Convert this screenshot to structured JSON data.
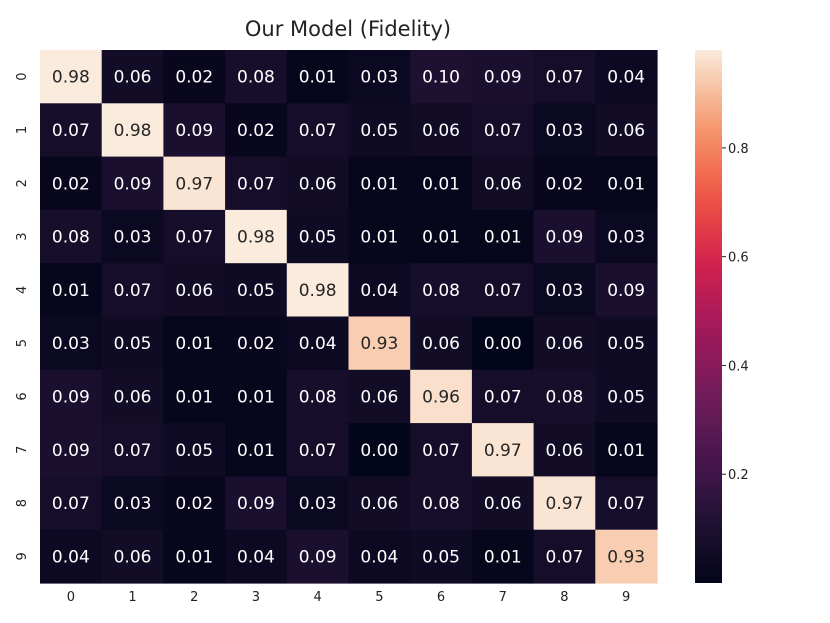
{
  "chart_data": {
    "type": "heatmap",
    "title": "Our Model (Fidelity)",
    "xlabel": "",
    "ylabel": "",
    "x_ticks": [
      "0",
      "1",
      "2",
      "3",
      "4",
      "5",
      "6",
      "7",
      "8",
      "9"
    ],
    "y_ticks": [
      "0",
      "1",
      "2",
      "3",
      "4",
      "5",
      "6",
      "7",
      "8",
      "9"
    ],
    "values": [
      [
        0.98,
        0.06,
        0.02,
        0.08,
        0.01,
        0.03,
        0.1,
        0.09,
        0.07,
        0.04
      ],
      [
        0.07,
        0.98,
        0.09,
        0.02,
        0.07,
        0.05,
        0.06,
        0.07,
        0.03,
        0.06
      ],
      [
        0.02,
        0.09,
        0.97,
        0.07,
        0.06,
        0.01,
        0.01,
        0.06,
        0.02,
        0.01
      ],
      [
        0.08,
        0.03,
        0.07,
        0.98,
        0.05,
        0.01,
        0.01,
        0.01,
        0.09,
        0.03
      ],
      [
        0.01,
        0.07,
        0.06,
        0.05,
        0.98,
        0.04,
        0.08,
        0.07,
        0.03,
        0.09
      ],
      [
        0.03,
        0.05,
        0.01,
        0.02,
        0.04,
        0.93,
        0.06,
        0.0,
        0.06,
        0.05
      ],
      [
        0.09,
        0.06,
        0.01,
        0.01,
        0.08,
        0.06,
        0.96,
        0.07,
        0.08,
        0.05
      ],
      [
        0.09,
        0.07,
        0.05,
        0.01,
        0.07,
        0.0,
        0.07,
        0.97,
        0.06,
        0.01
      ],
      [
        0.07,
        0.03,
        0.02,
        0.09,
        0.03,
        0.06,
        0.08,
        0.06,
        0.97,
        0.07
      ],
      [
        0.04,
        0.06,
        0.01,
        0.04,
        0.09,
        0.04,
        0.05,
        0.01,
        0.07,
        0.93
      ]
    ],
    "colorbar": {
      "ticks": [
        0.2,
        0.4,
        0.6,
        0.8
      ],
      "tick_labels": [
        "0.2",
        "0.4",
        "0.6",
        "0.8"
      ],
      "range": [
        0.0,
        0.98
      ],
      "colormap": "rocket"
    },
    "annotation_format": "2 decimals"
  }
}
